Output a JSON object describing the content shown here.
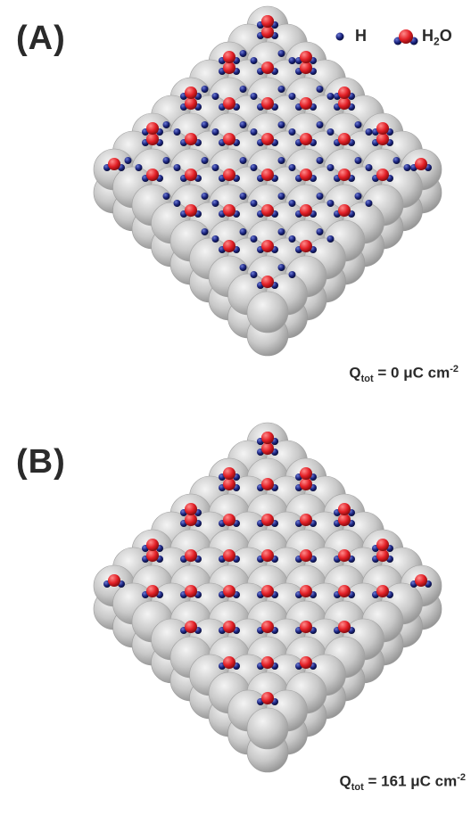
{
  "legend": {
    "h_label": "H",
    "water_label_main": "H",
    "water_label_sub": "2",
    "water_label_end": "O"
  },
  "panels": [
    {
      "label": "(A)",
      "charge_prefix": "Q",
      "charge_sub": "tot",
      "charge_value": " = 0 μC cm",
      "charge_sup": "-2",
      "adsorbed_h": true
    },
    {
      "label": "(B)",
      "charge_prefix": "Q",
      "charge_sub": "tot",
      "charge_value": " = 161 μC cm",
      "charge_sup": "-2",
      "adsorbed_h": false
    }
  ],
  "colors": {
    "surface_atom": "#c8c8c8",
    "oxygen": "#e21f26",
    "hydrogen": "#1a237e",
    "text": "#2a2a2a"
  }
}
